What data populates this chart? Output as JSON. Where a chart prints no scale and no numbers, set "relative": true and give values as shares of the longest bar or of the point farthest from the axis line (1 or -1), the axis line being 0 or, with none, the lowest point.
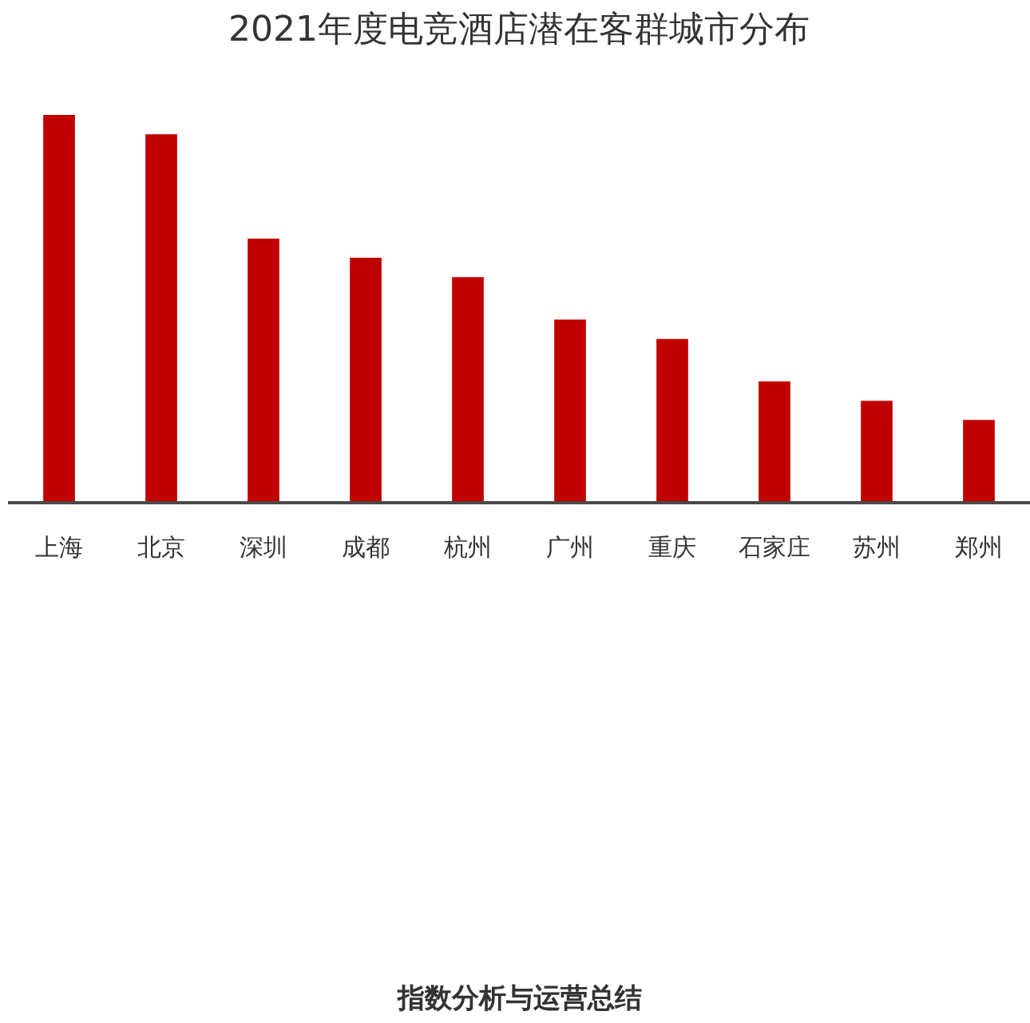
{
  "chart_data": {
    "type": "bar",
    "title": "2021年度电竞酒店潜在客群城市分布",
    "categories": [
      "上海",
      "北京",
      "深圳",
      "成都",
      "杭州",
      "广州",
      "重庆",
      "石家庄",
      "苏州",
      "郑州"
    ],
    "values": [
      1,
      0.95,
      0.68,
      0.63,
      0.58,
      0.47,
      0.42,
      0.31,
      0.26,
      0.21
    ],
    "color": "#c00000",
    "relative": true,
    "annotations": [
      "指数分析与运营总结"
    ]
  }
}
